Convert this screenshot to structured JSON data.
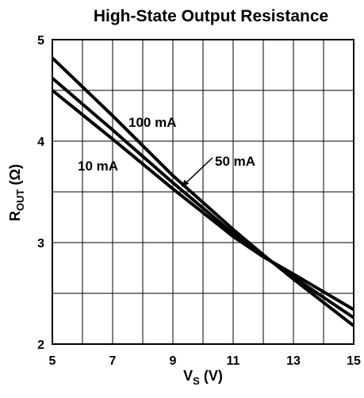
{
  "chart_data": {
    "type": "line",
    "title": "High-State Output Resistance",
    "xlabel": {
      "main": "V",
      "sub": "S",
      "unit": " (V)"
    },
    "ylabel": {
      "main": "R",
      "sub": "OUT",
      "unit": " (Ω)"
    },
    "xlim": [
      5,
      15
    ],
    "ylim": [
      2,
      5
    ],
    "x_ticks": [
      5,
      7,
      9,
      11,
      13,
      15
    ],
    "y_ticks": [
      2,
      3,
      4,
      5
    ],
    "x_grid": [
      5,
      6,
      7,
      8,
      9,
      10,
      11,
      12,
      13,
      14,
      15
    ],
    "y_grid": [
      2,
      2.5,
      3,
      3.5,
      4,
      4.5,
      5
    ],
    "grid": true,
    "series": [
      {
        "name": "100 mA",
        "x": [
          5,
          7,
          9,
          11,
          12,
          13,
          15
        ],
        "y": [
          4.82,
          4.25,
          3.66,
          3.13,
          2.88,
          2.64,
          2.18
        ]
      },
      {
        "name": "50 mA",
        "x": [
          5,
          7,
          9,
          11,
          12,
          13,
          15
        ],
        "y": [
          4.62,
          4.11,
          3.59,
          3.09,
          2.87,
          2.66,
          2.26
        ]
      },
      {
        "name": "10 mA",
        "x": [
          5,
          7,
          9,
          11,
          12,
          13,
          15
        ],
        "y": [
          4.5,
          4.02,
          3.53,
          3.06,
          2.86,
          2.69,
          2.34
        ]
      }
    ],
    "annotations": [
      {
        "text": "100 mA",
        "series": 0,
        "pointer": null
      },
      {
        "text": "50 mA",
        "series": 1,
        "pointer": [
          9.3,
          3.55
        ]
      },
      {
        "text": "10 mA",
        "series": 2,
        "pointer": null
      }
    ]
  }
}
